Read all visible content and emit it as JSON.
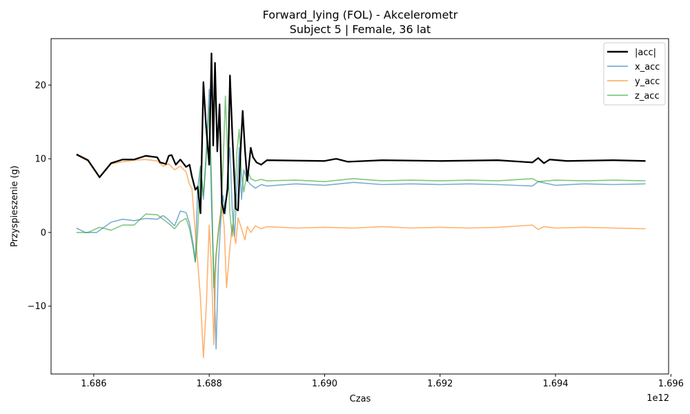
{
  "chart_data": {
    "type": "line",
    "title": "Forward_lying (FOL) - Akcelerometr",
    "subtitle": "Subject 5 | Female, 36 lat",
    "xlabel": "Czas",
    "ylabel": "Przyspieszenie (g)",
    "x_offset_label": "1e12",
    "x_unit_note": "x values in units of 1e12",
    "xlim": [
      1.68526,
      1.69596
    ],
    "ylim": [
      -19.2,
      26.3
    ],
    "x_ticks": [
      1.686,
      1.688,
      1.69,
      1.692,
      1.694,
      1.696
    ],
    "x_tick_labels": [
      "1.686",
      "1.688",
      "1.690",
      "1.692",
      "1.694",
      "1.696"
    ],
    "y_ticks": [
      -10,
      0,
      10,
      20
    ],
    "y_tick_labels": [
      "−10",
      "0",
      "10",
      "20"
    ],
    "grid": false,
    "legend_position": "top-right",
    "series": [
      {
        "name": "|acc|",
        "color": "#000000",
        "style": "bold",
        "points": [
          [
            1.6857,
            10.6
          ],
          [
            1.6859,
            9.8
          ],
          [
            1.6861,
            7.5
          ],
          [
            1.6863,
            9.4
          ],
          [
            1.6865,
            9.9
          ],
          [
            1.6867,
            9.9
          ],
          [
            1.6869,
            10.4
          ],
          [
            1.6871,
            10.2
          ],
          [
            1.68715,
            9.5
          ],
          [
            1.68725,
            9.3
          ],
          [
            1.6873,
            10.4
          ],
          [
            1.68735,
            10.5
          ],
          [
            1.68742,
            9.2
          ],
          [
            1.6875,
            9.9
          ],
          [
            1.6876,
            8.9
          ],
          [
            1.68766,
            9.2
          ],
          [
            1.6877,
            7.6
          ],
          [
            1.68776,
            5.8
          ],
          [
            1.6878,
            6.2
          ],
          [
            1.68785,
            2.6
          ],
          [
            1.6879,
            20.4
          ],
          [
            1.68794,
            15.0
          ],
          [
            1.688,
            9.2
          ],
          [
            1.68804,
            24.3
          ],
          [
            1.68807,
            11.8
          ],
          [
            1.6881,
            23.0
          ],
          [
            1.68814,
            11.0
          ],
          [
            1.68818,
            17.4
          ],
          [
            1.68822,
            4.0
          ],
          [
            1.68826,
            2.6
          ],
          [
            1.68832,
            6.0
          ],
          [
            1.68836,
            21.3
          ],
          [
            1.6884,
            13.5
          ],
          [
            1.68846,
            3.2
          ],
          [
            1.6885,
            3.0
          ],
          [
            1.68854,
            10.6
          ],
          [
            1.68858,
            16.5
          ],
          [
            1.68862,
            11.3
          ],
          [
            1.68866,
            7.0
          ],
          [
            1.68872,
            11.5
          ],
          [
            1.68876,
            10.2
          ],
          [
            1.68882,
            9.5
          ],
          [
            1.6889,
            9.2
          ],
          [
            1.689,
            9.8
          ],
          [
            1.69,
            9.7
          ],
          [
            1.6902,
            10.0
          ],
          [
            1.6904,
            9.6
          ],
          [
            1.691,
            9.8
          ],
          [
            1.692,
            9.7
          ],
          [
            1.693,
            9.8
          ],
          [
            1.6936,
            9.5
          ],
          [
            1.6937,
            10.1
          ],
          [
            1.6938,
            9.4
          ],
          [
            1.6939,
            9.9
          ],
          [
            1.6942,
            9.7
          ],
          [
            1.695,
            9.8
          ],
          [
            1.69556,
            9.7
          ]
        ]
      },
      {
        "name": "x_acc",
        "color": "#1f77b4",
        "style": "light",
        "points": [
          [
            1.6857,
            0.6
          ],
          [
            1.68585,
            0.0
          ],
          [
            1.68605,
            0.0
          ],
          [
            1.6863,
            1.4
          ],
          [
            1.6865,
            1.8
          ],
          [
            1.6867,
            1.6
          ],
          [
            1.6869,
            1.9
          ],
          [
            1.6871,
            1.8
          ],
          [
            1.6872,
            2.3
          ],
          [
            1.6873,
            1.7
          ],
          [
            1.6874,
            0.9
          ],
          [
            1.6875,
            2.9
          ],
          [
            1.6876,
            2.7
          ],
          [
            1.68766,
            1.2
          ],
          [
            1.68772,
            -1.5
          ],
          [
            1.68776,
            -4.0
          ],
          [
            1.6878,
            6.0
          ],
          [
            1.68785,
            9.0
          ],
          [
            1.6879,
            4.5
          ],
          [
            1.68794,
            9.5
          ],
          [
            1.688,
            19.4
          ],
          [
            1.68804,
            4.0
          ],
          [
            1.68808,
            -6.0
          ],
          [
            1.68812,
            -15.8
          ],
          [
            1.68816,
            -4.0
          ],
          [
            1.6882,
            1.5
          ],
          [
            1.68824,
            5.0
          ],
          [
            1.68828,
            2.5
          ],
          [
            1.68832,
            8.0
          ],
          [
            1.68836,
            11.5
          ],
          [
            1.6884,
            3.0
          ],
          [
            1.68844,
            -0.5
          ],
          [
            1.68848,
            6.0
          ],
          [
            1.68852,
            11.5
          ],
          [
            1.68856,
            4.5
          ],
          [
            1.6886,
            8.5
          ],
          [
            1.68866,
            7.0
          ],
          [
            1.68872,
            6.5
          ],
          [
            1.6888,
            6.0
          ],
          [
            1.6889,
            6.5
          ],
          [
            1.689,
            6.3
          ],
          [
            1.6895,
            6.6
          ],
          [
            1.69,
            6.4
          ],
          [
            1.6905,
            6.8
          ],
          [
            1.691,
            6.5
          ],
          [
            1.6915,
            6.6
          ],
          [
            1.692,
            6.5
          ],
          [
            1.6925,
            6.6
          ],
          [
            1.693,
            6.5
          ],
          [
            1.6936,
            6.3
          ],
          [
            1.6937,
            6.9
          ],
          [
            1.694,
            6.4
          ],
          [
            1.6945,
            6.6
          ],
          [
            1.695,
            6.5
          ],
          [
            1.69556,
            6.6
          ]
        ]
      },
      {
        "name": "y_acc",
        "color": "#ff7f0e",
        "style": "light",
        "points": [
          [
            1.6857,
            10.5
          ],
          [
            1.6859,
            9.7
          ],
          [
            1.6861,
            7.4
          ],
          [
            1.6863,
            9.3
          ],
          [
            1.6865,
            9.6
          ],
          [
            1.6867,
            9.8
          ],
          [
            1.6869,
            9.9
          ],
          [
            1.6871,
            9.7
          ],
          [
            1.6872,
            9.0
          ],
          [
            1.6873,
            9.3
          ],
          [
            1.6874,
            8.5
          ],
          [
            1.6875,
            9.0
          ],
          [
            1.6876,
            8.2
          ],
          [
            1.68766,
            6.5
          ],
          [
            1.6877,
            6.0
          ],
          [
            1.68775,
            1.0
          ],
          [
            1.6878,
            -4.0
          ],
          [
            1.68785,
            -9.0
          ],
          [
            1.6879,
            -17.0
          ],
          [
            1.68795,
            -10.0
          ],
          [
            1.688,
            1.0
          ],
          [
            1.68804,
            -5.0
          ],
          [
            1.68808,
            -15.2
          ],
          [
            1.68812,
            -3.0
          ],
          [
            1.68816,
            0.5
          ],
          [
            1.68822,
            4.0
          ],
          [
            1.68826,
            0.8
          ],
          [
            1.6883,
            -7.5
          ],
          [
            1.68836,
            -2.0
          ],
          [
            1.6884,
            1.0
          ],
          [
            1.68846,
            -1.5
          ],
          [
            1.6885,
            2.0
          ],
          [
            1.68856,
            0.5
          ],
          [
            1.68862,
            -1.0
          ],
          [
            1.68866,
            0.8
          ],
          [
            1.68872,
            0.0
          ],
          [
            1.6888,
            0.9
          ],
          [
            1.6889,
            0.5
          ],
          [
            1.689,
            0.8
          ],
          [
            1.6895,
            0.6
          ],
          [
            1.69,
            0.7
          ],
          [
            1.6905,
            0.6
          ],
          [
            1.691,
            0.8
          ],
          [
            1.6915,
            0.6
          ],
          [
            1.692,
            0.7
          ],
          [
            1.6925,
            0.6
          ],
          [
            1.693,
            0.7
          ],
          [
            1.6936,
            1.0
          ],
          [
            1.6937,
            0.4
          ],
          [
            1.6938,
            0.8
          ],
          [
            1.694,
            0.6
          ],
          [
            1.6945,
            0.7
          ],
          [
            1.695,
            0.6
          ],
          [
            1.69556,
            0.5
          ]
        ]
      },
      {
        "name": "z_acc",
        "color": "#2ca02c",
        "style": "light",
        "points": [
          [
            1.6857,
            0.0
          ],
          [
            1.6859,
            0.0
          ],
          [
            1.6861,
            0.7
          ],
          [
            1.6863,
            0.3
          ],
          [
            1.6865,
            1.0
          ],
          [
            1.6867,
            1.0
          ],
          [
            1.6869,
            2.5
          ],
          [
            1.6871,
            2.4
          ],
          [
            1.6872,
            1.8
          ],
          [
            1.6873,
            1.2
          ],
          [
            1.6874,
            0.5
          ],
          [
            1.6875,
            1.5
          ],
          [
            1.6876,
            1.9
          ],
          [
            1.68766,
            0.5
          ],
          [
            1.68772,
            -2.0
          ],
          [
            1.68776,
            -4.0
          ],
          [
            1.6878,
            0.0
          ],
          [
            1.68785,
            9.0
          ],
          [
            1.6879,
            5.0
          ],
          [
            1.68796,
            11.5
          ],
          [
            1.688,
            17.0
          ],
          [
            1.68804,
            7.0
          ],
          [
            1.68808,
            -7.5
          ],
          [
            1.68812,
            -3.0
          ],
          [
            1.68816,
            0.0
          ],
          [
            1.6882,
            2.5
          ],
          [
            1.68824,
            9.0
          ],
          [
            1.68828,
            18.5
          ],
          [
            1.68832,
            10.0
          ],
          [
            1.68836,
            2.5
          ],
          [
            1.6884,
            -0.5
          ],
          [
            1.68844,
            4.0
          ],
          [
            1.68848,
            11.0
          ],
          [
            1.68852,
            14.0
          ],
          [
            1.68856,
            8.0
          ],
          [
            1.6886,
            5.5
          ],
          [
            1.68866,
            8.5
          ],
          [
            1.68872,
            7.3
          ],
          [
            1.6888,
            7.0
          ],
          [
            1.6889,
            7.2
          ],
          [
            1.689,
            7.0
          ],
          [
            1.6895,
            7.1
          ],
          [
            1.69,
            6.9
          ],
          [
            1.6905,
            7.3
          ],
          [
            1.691,
            7.0
          ],
          [
            1.6915,
            7.1
          ],
          [
            1.692,
            7.0
          ],
          [
            1.6925,
            7.1
          ],
          [
            1.693,
            7.0
          ],
          [
            1.6936,
            7.3
          ],
          [
            1.6937,
            6.9
          ],
          [
            1.694,
            7.1
          ],
          [
            1.6945,
            7.0
          ],
          [
            1.695,
            7.1
          ],
          [
            1.69556,
            7.0
          ]
        ]
      }
    ]
  }
}
